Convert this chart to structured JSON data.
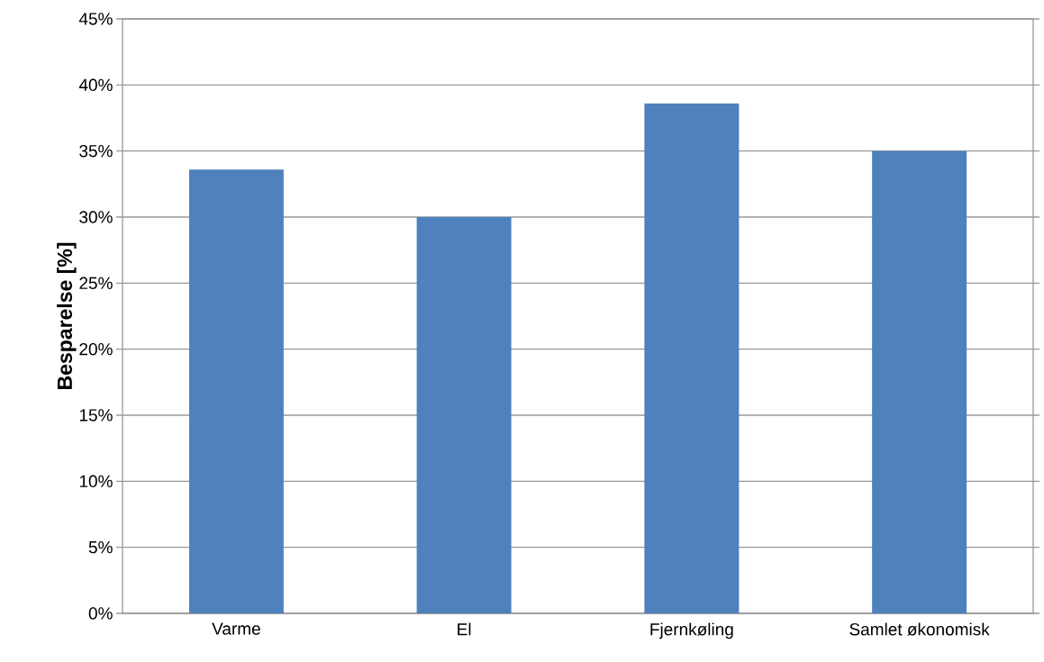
{
  "chart_data": {
    "type": "bar",
    "ylabel": "Besparelse [%]",
    "categories": [
      "Varme",
      "El",
      "Fjernkøling",
      "Samlet økonomisk"
    ],
    "values": [
      33.6,
      30,
      38.6,
      35
    ],
    "color": "#4f81bd",
    "ylim": [
      0,
      45
    ],
    "yticks": [
      {
        "value": 0,
        "label": "0%"
      },
      {
        "value": 5,
        "label": "5%"
      },
      {
        "value": 10,
        "label": "10%"
      },
      {
        "value": 15,
        "label": "15%"
      },
      {
        "value": 20,
        "label": "20%"
      },
      {
        "value": 25,
        "label": "25%"
      },
      {
        "value": 30,
        "label": "30%"
      },
      {
        "value": 35,
        "label": "35%"
      },
      {
        "value": 40,
        "label": "40%"
      },
      {
        "value": 45,
        "label": "45%"
      }
    ],
    "grid": "y"
  }
}
